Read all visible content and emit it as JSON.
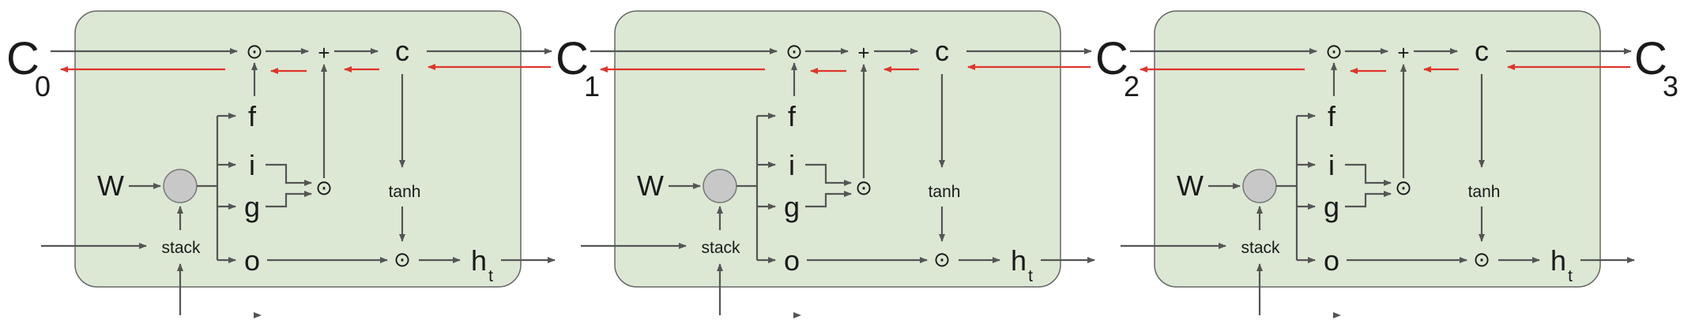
{
  "states": [
    {
      "main": "C",
      "sub": "0"
    },
    {
      "main": "C",
      "sub": "1"
    },
    {
      "main": "C",
      "sub": "2"
    },
    {
      "main": "C",
      "sub": "3"
    }
  ],
  "cell": {
    "weight_label": "W",
    "stack_label": "stack",
    "gates": [
      "f",
      "i",
      "g",
      "o"
    ],
    "cell_state_label": "c",
    "activation_label": "tanh",
    "multiply_symbol": "⊙",
    "add_symbol": "+",
    "hidden_main": "h",
    "hidden_sub": "t"
  },
  "cells_count": 3,
  "colors": {
    "cell_fill": "#dce8d4",
    "cell_stroke": "#666666",
    "forward_arrow": "#555555",
    "gradient_arrow": "#e0342a",
    "node_fill": "#c8c8c8"
  }
}
